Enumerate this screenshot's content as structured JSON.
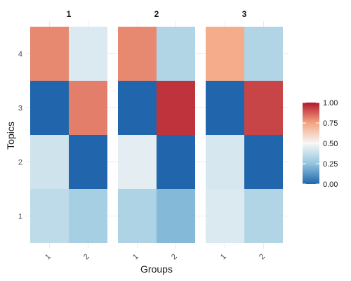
{
  "chart_data": {
    "type": "heatmap",
    "xlabel": "Groups",
    "ylabel": "Topics",
    "x_categories": [
      "1",
      "2"
    ],
    "y_categories": [
      "1",
      "2",
      "3",
      "4"
    ],
    "facets": [
      {
        "title": "1",
        "values": {
          "4": [
            0.8,
            0.43
          ],
          "3": [
            0.0,
            0.82
          ],
          "2": [
            0.4,
            0.0
          ],
          "1": [
            0.36,
            0.3
          ]
        }
      },
      {
        "title": "2",
        "values": {
          "4": [
            0.8,
            0.33
          ],
          "3": [
            0.0,
            0.95
          ],
          "2": [
            0.45,
            0.0
          ],
          "1": [
            0.32,
            0.22
          ]
        }
      },
      {
        "title": "3",
        "values": {
          "4": [
            0.73,
            0.33
          ],
          "3": [
            0.0,
            0.92
          ],
          "2": [
            0.42,
            0.0
          ],
          "1": [
            0.43,
            0.33
          ]
        }
      }
    ],
    "color_scale": {
      "domain": [
        0,
        1
      ],
      "stops": [
        {
          "value": 0.0,
          "color": "#2166ac"
        },
        {
          "value": 0.25,
          "color": "#92c5de"
        },
        {
          "value": 0.5,
          "color": "#f7f7f7"
        },
        {
          "value": 0.75,
          "color": "#f4a582"
        },
        {
          "value": 1.0,
          "color": "#b2182b"
        }
      ],
      "ticks": [
        "0.00",
        "0.25",
        "0.50",
        "0.75",
        "1.00"
      ]
    },
    "legend_position": "right",
    "grid": true
  }
}
